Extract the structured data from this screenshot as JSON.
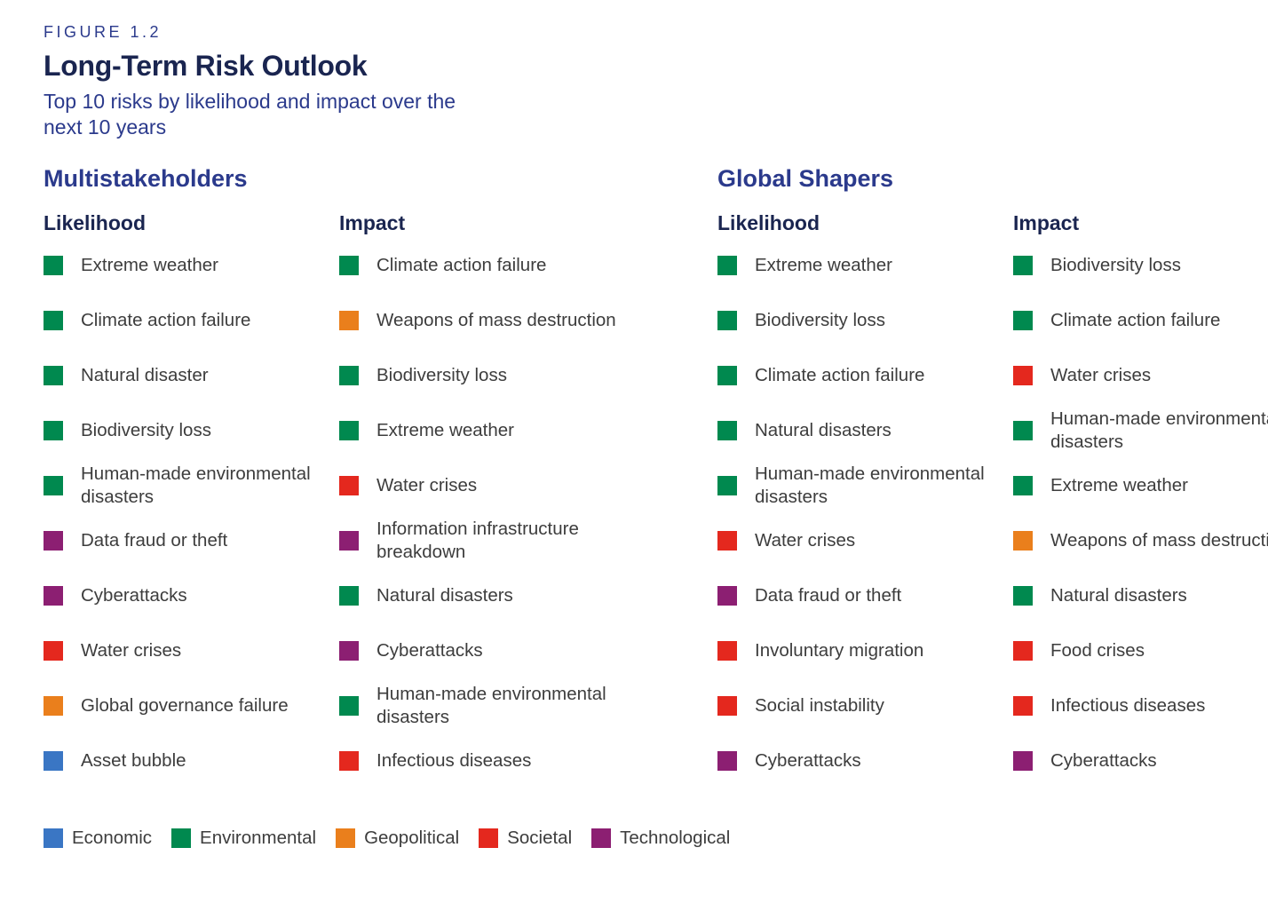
{
  "figure_label": "FIGURE 1.2",
  "title": "Long-Term Risk Outlook",
  "subtitle": "Top 10 risks by likelihood and impact over the next 10 years",
  "colors": {
    "Economic": "#3a76c4",
    "Environmental": "#00894f",
    "Geopolitical": "#ea7f1c",
    "Societal": "#e4281e",
    "Technological": "#8c1f72"
  },
  "legend": [
    {
      "key": "Economic",
      "label": "Economic"
    },
    {
      "key": "Environmental",
      "label": "Environmental"
    },
    {
      "key": "Geopolitical",
      "label": "Geopolitical"
    },
    {
      "key": "Societal",
      "label": "Societal"
    },
    {
      "key": "Technological",
      "label": "Technological"
    }
  ],
  "chart_data": {
    "type": "table",
    "groups": [
      {
        "name": "Multistakeholders",
        "columns": [
          {
            "heading": "Likelihood",
            "items": [
              {
                "label": "Extreme weather",
                "category": "Environmental"
              },
              {
                "label": "Climate action failure",
                "category": "Environmental"
              },
              {
                "label": "Natural disaster",
                "category": "Environmental"
              },
              {
                "label": "Biodiversity loss",
                "category": "Environmental"
              },
              {
                "label": "Human-made environmental disasters",
                "category": "Environmental"
              },
              {
                "label": "Data fraud or theft",
                "category": "Technological"
              },
              {
                "label": "Cyberattacks",
                "category": "Technological"
              },
              {
                "label": "Water crises",
                "category": "Societal"
              },
              {
                "label": "Global governance failure",
                "category": "Geopolitical"
              },
              {
                "label": "Asset bubble",
                "category": "Economic"
              }
            ]
          },
          {
            "heading": "Impact",
            "items": [
              {
                "label": "Climate action failure",
                "category": "Environmental"
              },
              {
                "label": "Weapons of mass destruction",
                "category": "Geopolitical"
              },
              {
                "label": "Biodiversity loss",
                "category": "Environmental"
              },
              {
                "label": "Extreme weather",
                "category": "Environmental"
              },
              {
                "label": "Water crises",
                "category": "Societal"
              },
              {
                "label": "Information infrastructure breakdown",
                "category": "Technological"
              },
              {
                "label": "Natural disasters",
                "category": "Environmental"
              },
              {
                "label": "Cyberattacks",
                "category": "Technological"
              },
              {
                "label": "Human-made environmental disasters",
                "category": "Environmental"
              },
              {
                "label": "Infectious diseases",
                "category": "Societal"
              }
            ]
          }
        ]
      },
      {
        "name": "Global Shapers",
        "columns": [
          {
            "heading": "Likelihood",
            "items": [
              {
                "label": "Extreme weather",
                "category": "Environmental"
              },
              {
                "label": "Biodiversity loss",
                "category": "Environmental"
              },
              {
                "label": "Climate action failure",
                "category": "Environmental"
              },
              {
                "label": "Natural disasters",
                "category": "Environmental"
              },
              {
                "label": "Human-made environmental disasters",
                "category": "Environmental"
              },
              {
                "label": "Water crises",
                "category": "Societal"
              },
              {
                "label": "Data fraud or theft",
                "category": "Technological"
              },
              {
                "label": "Involuntary migration",
                "category": "Societal"
              },
              {
                "label": "Social instability",
                "category": "Societal"
              },
              {
                "label": "Cyberattacks",
                "category": "Technological"
              }
            ]
          },
          {
            "heading": "Impact",
            "items": [
              {
                "label": "Biodiversity loss",
                "category": "Environmental"
              },
              {
                "label": "Climate action failure",
                "category": "Environmental"
              },
              {
                "label": "Water crises",
                "category": "Societal"
              },
              {
                "label": "Human-made environmental disasters",
                "category": "Environmental"
              },
              {
                "label": "Extreme weather",
                "category": "Environmental"
              },
              {
                "label": "Weapons of mass destruction",
                "category": "Geopolitical"
              },
              {
                "label": "Natural disasters",
                "category": "Environmental"
              },
              {
                "label": "Food crises",
                "category": "Societal"
              },
              {
                "label": "Infectious diseases",
                "category": "Societal"
              },
              {
                "label": "Cyberattacks",
                "category": "Technological"
              }
            ]
          }
        ]
      }
    ]
  }
}
